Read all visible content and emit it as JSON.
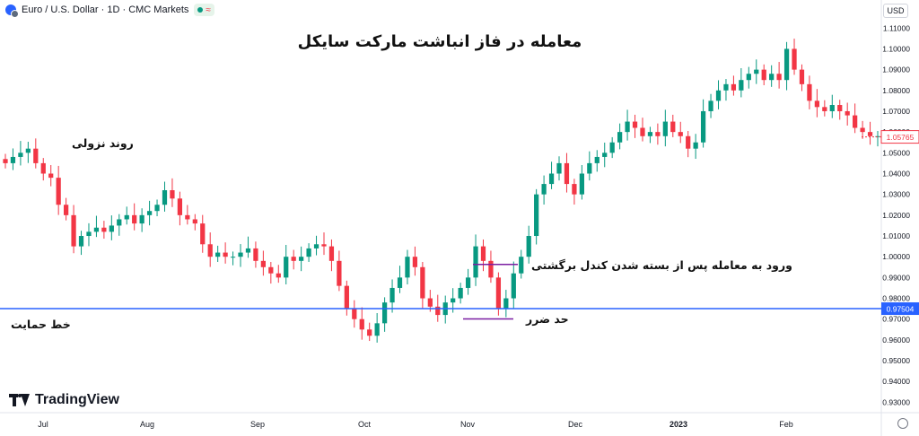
{
  "header": {
    "symbol": "Euro / U.S. Dollar · 1D · CMC Markets",
    "badge_symbol": "≈",
    "currency": "USD"
  },
  "brand": "TradingView",
  "annotations": {
    "title": "معامله در فاز انباشت مارکت سایکل",
    "downtrend": "روند نزولی",
    "entry": "ورود به معامله پس از بسته شدن کندل برگشتی",
    "stop_loss": "حد ضرر",
    "support": "خط حمایت"
  },
  "colors": {
    "up": "#089981",
    "down": "#f23645",
    "support_line": "#2962ff",
    "stop_marker": "#7b1fa2"
  },
  "chart_data": {
    "type": "candlestick",
    "title": "معامله در فاز انباشت مارکت سایکل",
    "xlabel": "",
    "ylabel": "",
    "ylim": [
      0.925,
      1.114
    ],
    "y_ticks": [
      "1.11000",
      "1.10000",
      "1.09000",
      "1.08000",
      "1.07000",
      "1.06000",
      "1.05000",
      "1.04000",
      "1.03000",
      "1.02000",
      "1.01000",
      "1.00000",
      "0.99000",
      "0.98000",
      "0.97000",
      "0.96000",
      "0.95000",
      "0.94000",
      "0.93000"
    ],
    "x_ticks": [
      "Jul",
      "Aug",
      "Sep",
      "Oct",
      "Nov",
      "Dec",
      "2023",
      "Feb"
    ],
    "last_price": 1.05765,
    "last_price_label": "1.05765",
    "support_level": 0.97504,
    "support_label": "0.97504",
    "entry_level": 0.9963,
    "stop_loss_level": 0.9701,
    "close_path": [
      1.045,
      1.048,
      1.05,
      1.052,
      1.045,
      1.04,
      1.038,
      1.025,
      1.02,
      1.005,
      1.01,
      1.012,
      1.014,
      1.012,
      1.015,
      1.018,
      1.02,
      1.016,
      1.02,
      1.022,
      1.025,
      1.032,
      1.028,
      1.02,
      1.018,
      1.016,
      1.006,
      1.0,
      1.002,
      1.0,
      1.0,
      1.002,
      1.004,
      0.998,
      0.995,
      0.992,
      0.99,
      1.0,
      0.998,
      1.0,
      1.004,
      1.006,
      1.005,
      0.998,
      0.986,
      0.975,
      0.97,
      0.965,
      0.962,
      0.968,
      0.978,
      0.985,
      0.99,
      1.0,
      0.995,
      0.98,
      0.976,
      0.972,
      0.978,
      0.98,
      0.985,
      0.99,
      1.005,
      0.998,
      0.99,
      0.975,
      0.98,
      0.992,
      1.0,
      1.01,
      1.03,
      1.035,
      1.04,
      1.045,
      1.035,
      1.03,
      1.04,
      1.045,
      1.048,
      1.05,
      1.055,
      1.06,
      1.065,
      1.062,
      1.058,
      1.06,
      1.058,
      1.065,
      1.06,
      1.058,
      1.052,
      1.055,
      1.07,
      1.075,
      1.08,
      1.083,
      1.08,
      1.085,
      1.088,
      1.09,
      1.085,
      1.088,
      1.085,
      1.1,
      1.09,
      1.083,
      1.075,
      1.072,
      1.07,
      1.073,
      1.07,
      1.068,
      1.062,
      1.06,
      1.058,
      1.058
    ]
  }
}
